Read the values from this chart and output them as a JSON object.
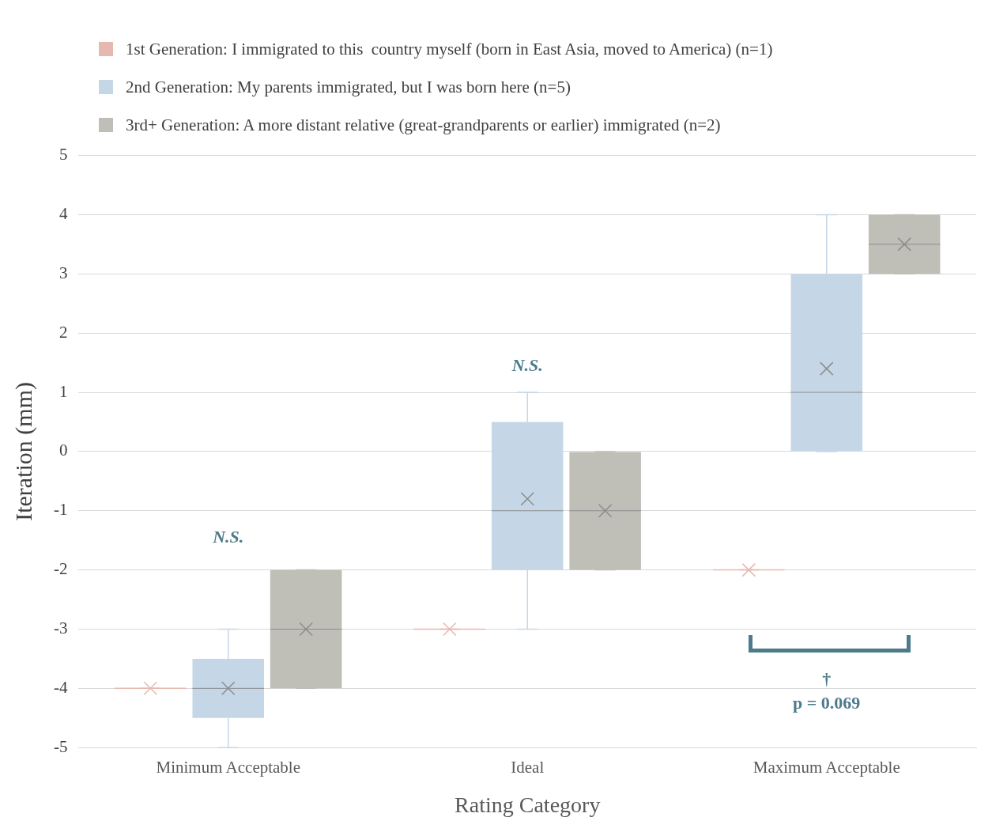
{
  "chart_data": {
    "type": "box",
    "xlabel": "Rating Category",
    "ylabel": "Iteration (mm)",
    "categories": [
      "Minimum Acceptable",
      "Ideal",
      "Maximum Acceptable"
    ],
    "ylim": [
      -5,
      5
    ],
    "yticks": [
      -5,
      -4,
      -3,
      -2,
      -1,
      0,
      1,
      2,
      3,
      4,
      5
    ],
    "grid": "y",
    "legend": "top left",
    "series": [
      {
        "name": "1st Generation: I immigrated to this  country myself (born in East Asia, moved to America) (n=1)",
        "color": "#e6b9b0",
        "boxes": [
          {
            "low": -4,
            "q1": -4,
            "median": -4,
            "q3": -4,
            "high": -4,
            "mean": -4
          },
          {
            "low": -3,
            "q1": -3,
            "median": -3,
            "q3": -3,
            "high": -3,
            "mean": -3
          },
          {
            "low": -2,
            "q1": -2,
            "median": -2,
            "q3": -2,
            "high": -2,
            "mean": -2
          }
        ]
      },
      {
        "name": "2nd Generation: My parents immigrated, but I was born here (n=5)",
        "color": "#c5d7e6",
        "boxes": [
          {
            "low": -5,
            "q1": -4.5,
            "median": -4,
            "q3": -3.5,
            "high": -3,
            "mean": -4
          },
          {
            "low": -3,
            "q1": -2,
            "median": -1,
            "q3": 0.5,
            "high": 1,
            "mean": -0.8
          },
          {
            "low": 0,
            "q1": 0,
            "median": 1,
            "q3": 3,
            "high": 4,
            "mean": 1.4
          }
        ]
      },
      {
        "name": "3rd+ Generation: A more distant relative (great-grandparents or earlier) immigrated (n=2)",
        "color": "#bfbfb8",
        "boxes": [
          {
            "low": -4,
            "q1": -4,
            "median": -3,
            "q3": -2,
            "high": -2,
            "mean": -3
          },
          {
            "low": -2,
            "q1": -2,
            "median": -1,
            "q3": 0,
            "high": 0,
            "mean": -1
          },
          {
            "low": 3,
            "q1": 3,
            "median": 3.5,
            "q3": 4,
            "high": 4,
            "mean": 3.5
          }
        ]
      }
    ],
    "annotations": [
      "N.S.",
      "N.S.",
      "†",
      "p = 0.069"
    ]
  }
}
